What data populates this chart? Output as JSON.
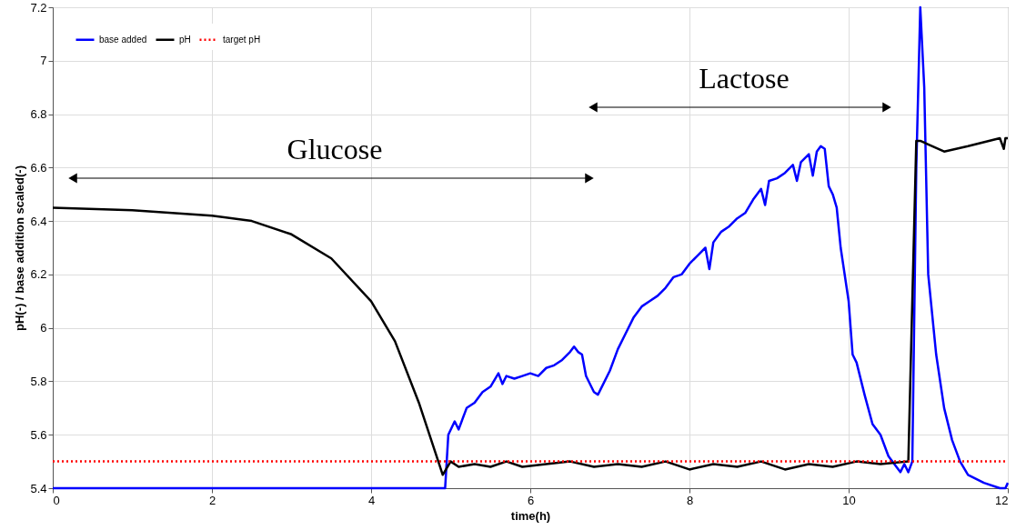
{
  "chart_data": {
    "type": "line",
    "xlabel": "time(h)",
    "ylabel": "pH(-) / base addition scaled(-)",
    "xlim": [
      0,
      12
    ],
    "xticks": [
      0,
      2,
      4,
      6,
      8,
      10,
      12
    ],
    "ylim": [
      5.4,
      7.2
    ],
    "yticks": [
      5.4,
      5.6,
      5.8,
      6,
      6.2,
      6.4,
      6.6,
      6.8,
      7,
      7.2
    ],
    "grid": true,
    "legend": "top left",
    "marker": "none",
    "annotations": [
      "Glucose",
      "Lactose"
    ],
    "series": [
      {
        "name": "base added",
        "color": "#0000ff",
        "line_style": "solid",
        "x": [
          0,
          4.93,
          4.97,
          5.05,
          5.1,
          5.2,
          5.3,
          5.4,
          5.5,
          5.6,
          5.65,
          5.7,
          5.8,
          5.9,
          6.0,
          6.1,
          6.2,
          6.3,
          6.4,
          6.5,
          6.55,
          6.6,
          6.65,
          6.7,
          6.8,
          6.85,
          6.9,
          7.0,
          7.1,
          7.2,
          7.3,
          7.4,
          7.5,
          7.6,
          7.7,
          7.8,
          7.9,
          8.0,
          8.1,
          8.2,
          8.25,
          8.3,
          8.4,
          8.5,
          8.6,
          8.7,
          8.8,
          8.9,
          8.95,
          9.0,
          9.1,
          9.2,
          9.3,
          9.35,
          9.4,
          9.5,
          9.55,
          9.6,
          9.65,
          9.7,
          9.75,
          9.8,
          9.85,
          9.9,
          10.0,
          10.05,
          10.1,
          10.2,
          10.3,
          10.4,
          10.5,
          10.6,
          10.65,
          10.7,
          10.75,
          10.8,
          10.85,
          10.9,
          10.95,
          11.0,
          11.1,
          11.2,
          11.3,
          11.4,
          11.5,
          11.7,
          11.9,
          11.97,
          12
        ],
        "values": [
          5.4,
          5.4,
          5.6,
          5.65,
          5.62,
          5.7,
          5.72,
          5.76,
          5.78,
          5.83,
          5.79,
          5.82,
          5.81,
          5.82,
          5.83,
          5.82,
          5.85,
          5.86,
          5.88,
          5.91,
          5.93,
          5.91,
          5.9,
          5.82,
          5.76,
          5.75,
          5.78,
          5.84,
          5.92,
          5.98,
          6.04,
          6.08,
          6.1,
          6.12,
          6.15,
          6.19,
          6.2,
          6.24,
          6.27,
          6.3,
          6.22,
          6.32,
          6.36,
          6.38,
          6.41,
          6.43,
          6.48,
          6.52,
          6.46,
          6.55,
          6.56,
          6.58,
          6.61,
          6.55,
          6.62,
          6.65,
          6.57,
          6.66,
          6.68,
          6.67,
          6.53,
          6.5,
          6.45,
          6.3,
          6.1,
          5.9,
          5.87,
          5.75,
          5.64,
          5.6,
          5.52,
          5.48,
          5.46,
          5.49,
          5.46,
          5.5,
          6.6,
          7.2,
          6.9,
          6.2,
          5.9,
          5.7,
          5.58,
          5.5,
          5.45,
          5.42,
          5.4,
          5.4,
          5.42
        ]
      },
      {
        "name": "pH",
        "color": "#000000",
        "line_style": "solid",
        "x": [
          0,
          1,
          2,
          2.5,
          3,
          3.5,
          4,
          4.3,
          4.6,
          4.9,
          5.0,
          5.1,
          5.3,
          5.5,
          5.7,
          5.9,
          6.2,
          6.5,
          6.8,
          7.1,
          7.4,
          7.7,
          8.0,
          8.3,
          8.6,
          8.9,
          9.2,
          9.5,
          9.8,
          10.1,
          10.4,
          10.75,
          10.85,
          10.9,
          11.2,
          11.5,
          11.9,
          11.95,
          11.97,
          12
        ],
        "values": [
          6.45,
          6.44,
          6.42,
          6.4,
          6.35,
          6.26,
          6.1,
          5.95,
          5.72,
          5.45,
          5.5,
          5.48,
          5.49,
          5.48,
          5.5,
          5.48,
          5.49,
          5.5,
          5.48,
          5.49,
          5.48,
          5.5,
          5.47,
          5.49,
          5.48,
          5.5,
          5.47,
          5.49,
          5.48,
          5.5,
          5.49,
          5.5,
          6.7,
          6.7,
          6.66,
          6.68,
          6.71,
          6.67,
          6.71,
          6.71
        ]
      },
      {
        "name": "target pH",
        "color": "#ff0000",
        "line_style": "dotted",
        "x": [
          0,
          12
        ],
        "values": [
          5.5,
          5.5
        ]
      }
    ]
  }
}
